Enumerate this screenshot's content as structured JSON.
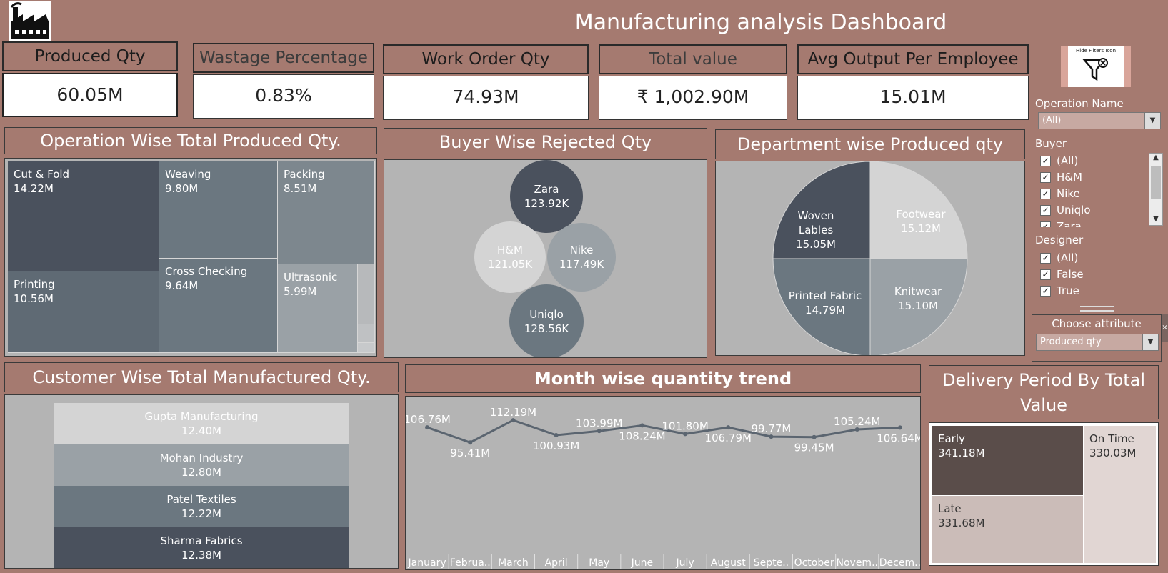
{
  "header": {
    "title": "Manufacturing analysis Dashboard"
  },
  "logo": {
    "icon": "factory-icon"
  },
  "kpis": [
    {
      "label": "Produced Qty",
      "value": "60.05M"
    },
    {
      "label": "Wastage Percentage",
      "value": "0.83%"
    },
    {
      "label": "Work Order Qty",
      "value": "74.93M"
    },
    {
      "label": "Total value",
      "value": "₹ 1,002.90M"
    },
    {
      "label": "Avg Output Per Employee",
      "value": "15.01M"
    }
  ],
  "filters": {
    "hide_button_label": "Hide Filters Icon",
    "operation": {
      "label": "Operation Name",
      "value": "(All)"
    },
    "buyer": {
      "label": "Buyer",
      "options": [
        "(All)",
        "H&M",
        "Nike",
        "Uniqlo",
        "Zara"
      ]
    },
    "designer": {
      "label": "Designer",
      "options": [
        "(All)",
        "False",
        "True"
      ]
    },
    "attribute": {
      "label": "Choose attribute",
      "value": "Produced qty"
    }
  },
  "operation_panel": {
    "title": "Operation Wise Total Produced Qty.",
    "items": [
      {
        "name": "Cut  & Fold",
        "value": "14.22M"
      },
      {
        "name": "Weaving",
        "value": "9.80M"
      },
      {
        "name": "Packing",
        "value": "8.51M"
      },
      {
        "name": "Printing",
        "value": "10.56M"
      },
      {
        "name": "Cross Checking",
        "value": "9.64M"
      },
      {
        "name": "Ultrasonic",
        "value": "5.99M"
      }
    ]
  },
  "buyer_panel": {
    "title": "Buyer Wise Rejected Qty",
    "items": [
      {
        "name": "Zara",
        "value": "123.92K"
      },
      {
        "name": "H&M",
        "value": "121.05K"
      },
      {
        "name": "Nike",
        "value": "117.49K"
      },
      {
        "name": "Uniqlo",
        "value": "128.56K"
      }
    ]
  },
  "department_panel": {
    "title": "Department wise Produced qty",
    "items": [
      {
        "name": "Woven Lables",
        "value": "15.05M"
      },
      {
        "name": "Footwear",
        "value": "15.12M"
      },
      {
        "name": "Printed Fabric",
        "value": "14.79M"
      },
      {
        "name": "Knitwear",
        "value": "15.10M"
      }
    ]
  },
  "customer_panel": {
    "title": "Customer Wise Total Manufactured Qty.",
    "items": [
      {
        "name": "Gupta Manufacturing",
        "value": "12.40M"
      },
      {
        "name": "Mohan Industry",
        "value": "12.80M"
      },
      {
        "name": "Patel Textiles",
        "value": "12.22M"
      },
      {
        "name": "Sharma Fabrics",
        "value": "12.38M"
      }
    ]
  },
  "trend_panel": {
    "title": "Month wise quantity trend"
  },
  "delivery_panel": {
    "title": "Delivery Period By Total Value",
    "items": [
      {
        "name": "Early",
        "value": "341.18M"
      },
      {
        "name": "On Time",
        "value": "330.03M"
      },
      {
        "name": "Late",
        "value": "331.68M"
      }
    ]
  },
  "colors": {
    "background": "#a57a70",
    "dark": "#4a515d",
    "mid": "#6b7780",
    "light": "#9fa4a7",
    "pale": "#d3d3d3"
  },
  "chart_data": [
    {
      "type": "treemap",
      "categories": [
        "Cut  & Fold",
        "Weaving",
        "Packing",
        "Printing",
        "Cross Checking",
        "Ultrasonic"
      ],
      "values": [
        14.22,
        9.8,
        8.51,
        10.56,
        9.64,
        5.99
      ]
    },
    {
      "type": "bubble",
      "categories": [
        "Zara",
        "H&M",
        "Nike",
        "Uniqlo"
      ],
      "values": [
        123.92,
        121.05,
        117.49,
        128.56
      ]
    },
    {
      "type": "pie",
      "categories": [
        "Woven Lables",
        "Footwear",
        "Printed Fabric",
        "Knitwear"
      ],
      "values": [
        15.05,
        15.12,
        14.79,
        15.1
      ]
    },
    {
      "type": "bar",
      "categories": [
        "Gupta Manufacturing",
        "Mohan Industry",
        "Patel Textiles",
        "Sharma Fabrics"
      ],
      "values": [
        12.4,
        12.8,
        12.22,
        12.38
      ]
    },
    {
      "type": "line",
      "x": [
        "January",
        "Februa..",
        "March",
        "April",
        "May",
        "June",
        "July",
        "August",
        "Septe..",
        "October",
        "Novem..",
        "Decem.."
      ],
      "y": [
        106.76,
        95.41,
        112.19,
        100.93,
        103.99,
        108.24,
        101.8,
        106.79,
        99.77,
        99.45,
        105.24,
        106.64
      ],
      "labels": [
        "106.76M",
        "95.41M",
        "112.19M",
        "100.93M",
        "103.99M",
        "108.24M",
        "101.80M",
        "106.79M",
        "99.77M",
        "99.45M",
        "105.24M",
        "106.64M"
      ]
    },
    {
      "type": "treemap",
      "categories": [
        "Early",
        "On Time",
        "Late"
      ],
      "values": [
        341.18,
        330.03,
        331.68
      ]
    }
  ]
}
